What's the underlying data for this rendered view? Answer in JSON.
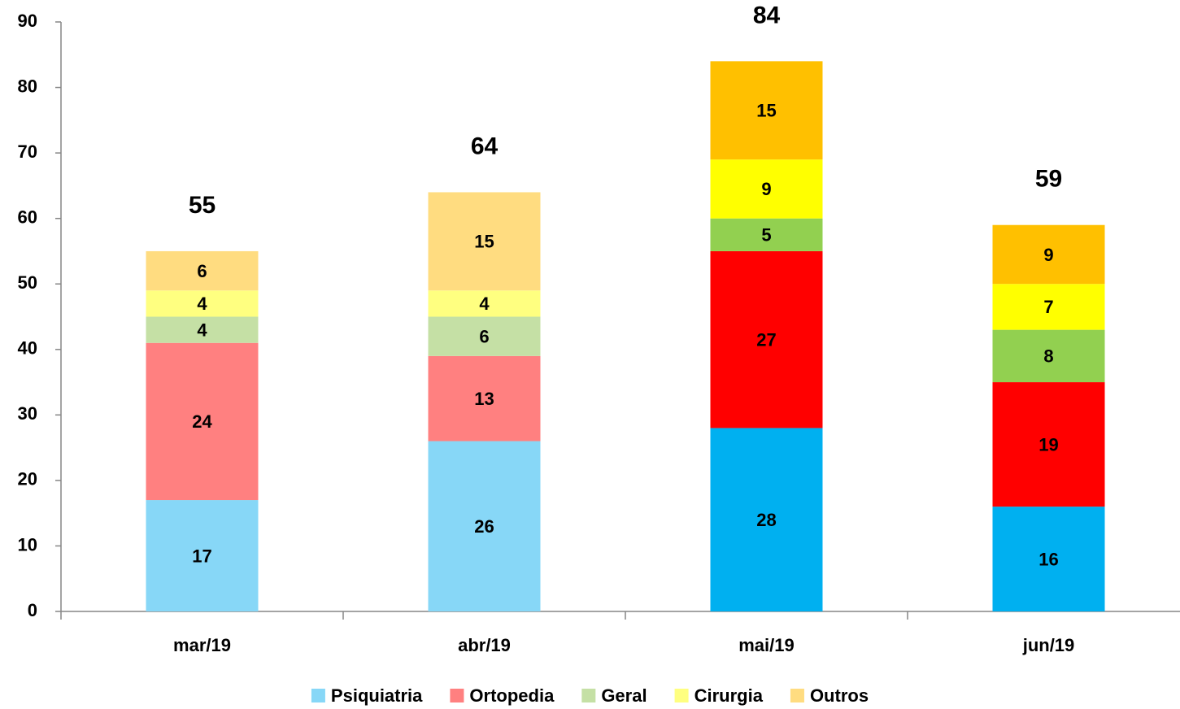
{
  "chart_data": {
    "type": "stacked_bar",
    "categories": [
      "mar/19",
      "abr/19",
      "mai/19",
      "jun/19"
    ],
    "series": [
      {
        "name": "Psiquiatria",
        "color": "#87d7f7",
        "colors": [
          "#87d7f7",
          "#87d7f7",
          "#00b0f0",
          "#00b0f0"
        ],
        "values": [
          17,
          26,
          28,
          16
        ]
      },
      {
        "name": "Ortopedia",
        "color": "#ff8080",
        "colors": [
          "#ff8080",
          "#ff8080",
          "#ff0000",
          "#ff0000"
        ],
        "values": [
          24,
          13,
          27,
          19
        ]
      },
      {
        "name": "Geral",
        "color": "#c5e0a5",
        "colors": [
          "#c5e0a5",
          "#c5e0a5",
          "#92d050",
          "#92d050"
        ],
        "values": [
          4,
          6,
          5,
          8
        ]
      },
      {
        "name": "Cirurgia",
        "color": "#ffff80",
        "colors": [
          "#ffff80",
          "#ffff80",
          "#ffff00",
          "#ffff00"
        ],
        "values": [
          4,
          4,
          9,
          7
        ]
      },
      {
        "name": "Outros",
        "color": "#ffdc80",
        "colors": [
          "#ffdc80",
          "#ffdc80",
          "#ffc000",
          "#ffc000"
        ],
        "values": [
          6,
          15,
          15,
          9
        ]
      }
    ],
    "totals": [
      55,
      64,
      84,
      59
    ],
    "ylim": [
      0,
      90
    ],
    "yticks": [
      0,
      10,
      20,
      30,
      40,
      50,
      60,
      70,
      80,
      90
    ],
    "grid": false,
    "legend": "bottom"
  }
}
